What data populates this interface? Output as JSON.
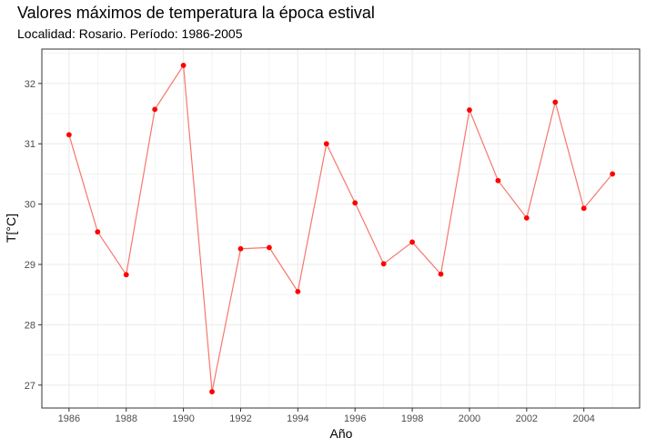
{
  "chart_data": {
    "type": "line",
    "title": "Valores máximos de temperatura la época estival",
    "subtitle": "Localidad: Rosario. Período: 1986-2005",
    "xlabel": "Año",
    "ylabel": "T[°C]",
    "x": [
      1986,
      1987,
      1988,
      1989,
      1990,
      1991,
      1992,
      1993,
      1994,
      1995,
      1996,
      1997,
      1998,
      1999,
      2000,
      2001,
      2002,
      2003,
      2004,
      2005
    ],
    "series": [
      {
        "values": [
          31.15,
          29.54,
          28.83,
          31.57,
          32.3,
          26.89,
          29.26,
          29.28,
          28.55,
          31.0,
          30.02,
          29.01,
          29.37,
          28.84,
          31.56,
          30.39,
          29.77,
          31.69,
          29.93,
          30.5
        ]
      }
    ],
    "xticks": [
      "1986",
      "1988",
      "1990",
      "1992",
      "1994",
      "1996",
      "1998",
      "2000",
      "2002",
      "2004"
    ],
    "yticks": [
      "27",
      "28",
      "29",
      "30",
      "31",
      "32"
    ],
    "xlim": [
      1985.05,
      2005.95
    ],
    "ylim": [
      26.62,
      32.57
    ],
    "grid": true,
    "legend": "none",
    "colors": {
      "line": "#f8766d",
      "points": "#ff0000",
      "grid": "#ebebeb",
      "border": "#333333"
    }
  }
}
